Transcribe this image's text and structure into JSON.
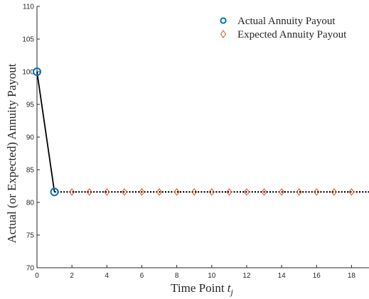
{
  "chart_data": {
    "type": "scatter",
    "xlabel": "Time Point",
    "xlabel_var": "t",
    "xlabel_sub": "j",
    "ylabel": "Actual (or Expected) Annuity Payout",
    "xlim": [
      0,
      19
    ],
    "ylim": [
      70,
      110
    ],
    "xticks": [
      0,
      2,
      4,
      6,
      8,
      10,
      12,
      14,
      16,
      18
    ],
    "yticks": [
      70,
      75,
      80,
      85,
      90,
      95,
      100,
      105,
      110
    ],
    "grid": false,
    "legend_position": "top-right",
    "series": [
      {
        "name": "Actual Annuity Payout",
        "marker": "circle",
        "color": "#0072BD",
        "x": [
          0,
          1
        ],
        "y": [
          100,
          81.6
        ]
      },
      {
        "name": "Expected Annuity Payout",
        "marker": "diamond",
        "color": "#D95319",
        "x": [
          2,
          3,
          4,
          5,
          6,
          7,
          8,
          9,
          10,
          11,
          12,
          13,
          14,
          15,
          16,
          17,
          18
        ],
        "y": [
          81.6,
          81.6,
          81.6,
          81.6,
          81.6,
          81.6,
          81.6,
          81.6,
          81.6,
          81.6,
          81.6,
          81.6,
          81.6,
          81.6,
          81.6,
          81.6,
          81.6
        ]
      }
    ],
    "lines": [
      {
        "style": "solid",
        "color": "#000000",
        "x": [
          0,
          1
        ],
        "y": [
          100,
          81.6
        ]
      },
      {
        "style": "dotted",
        "color": "#000000",
        "x": [
          1,
          19
        ],
        "y": [
          81.6,
          81.6
        ]
      }
    ]
  }
}
